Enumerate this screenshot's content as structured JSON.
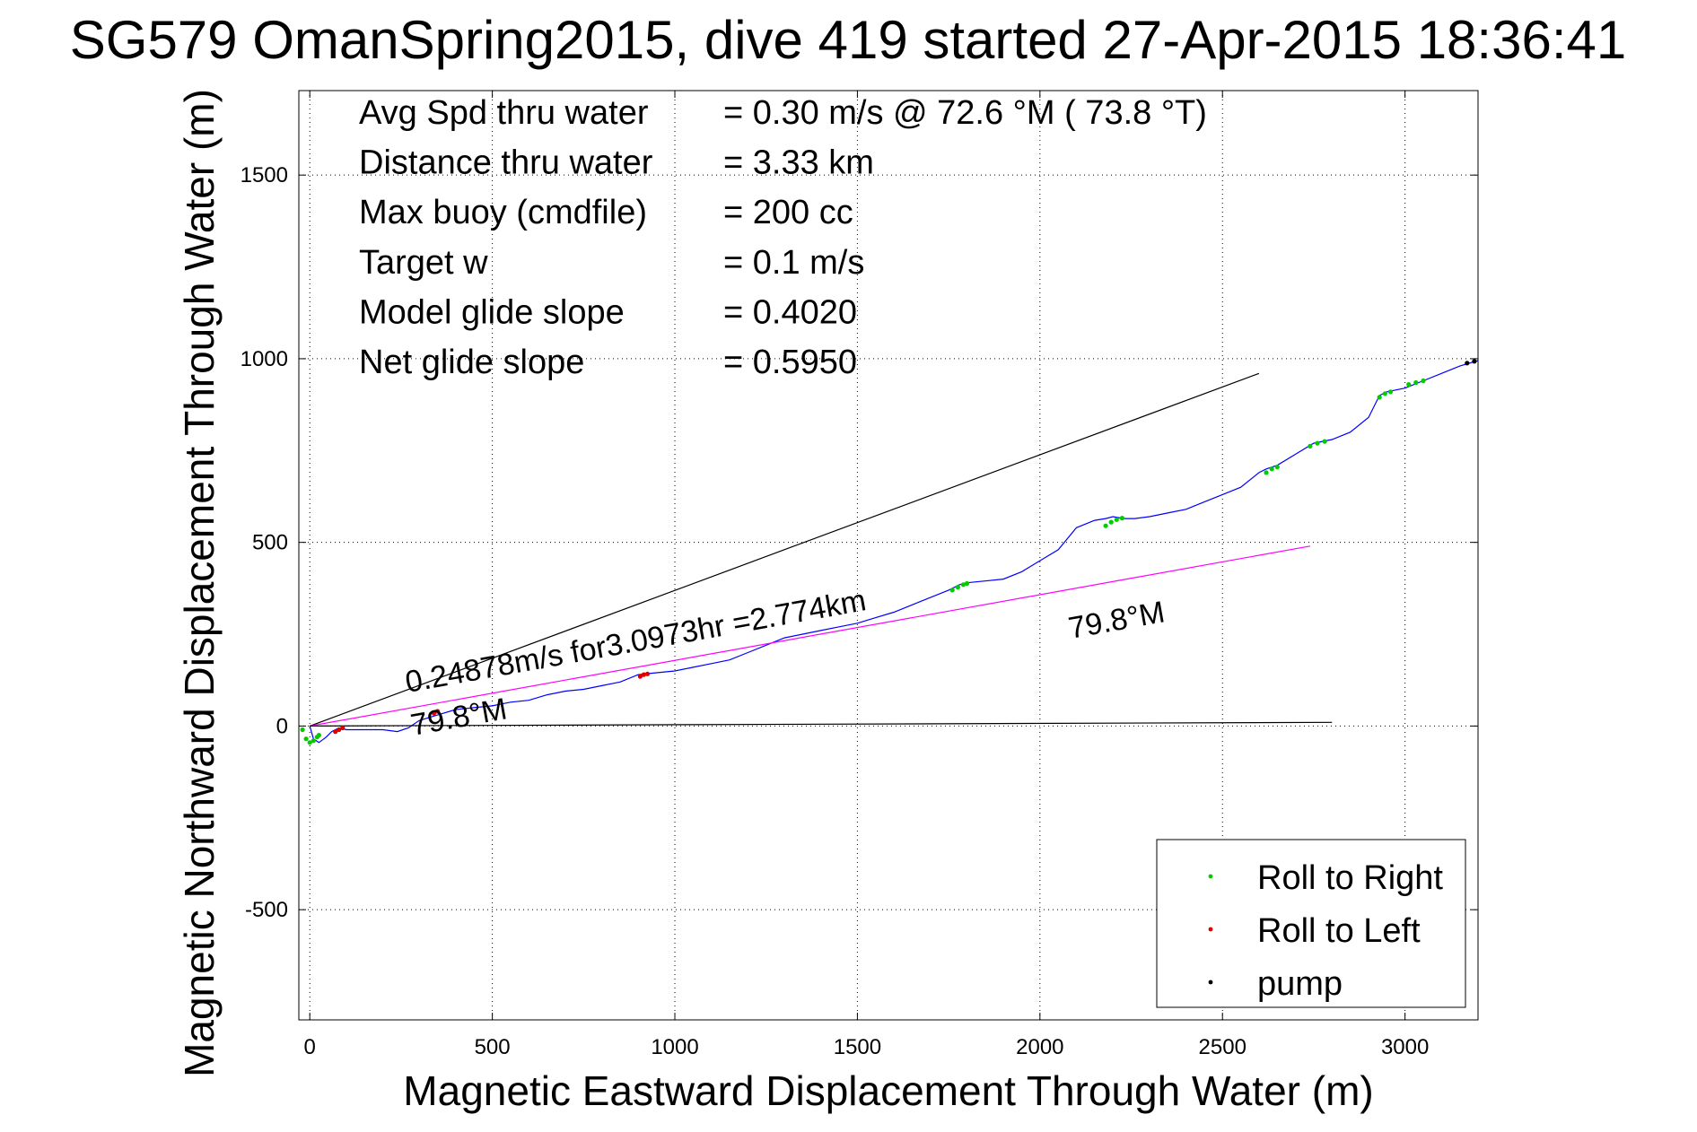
{
  "chart_data": {
    "type": "line",
    "title": "SG579 OmanSpring2015, dive 419 started 27-Apr-2015 18:36:41",
    "xlabel": "Magnetic Eastward Displacement Through Water (m)",
    "ylabel": "Magnetic Northward Displacement Through Water (m)",
    "xlim": [
      -30,
      3200
    ],
    "ylim": [
      -800,
      1730
    ],
    "xticks": [
      0,
      500,
      1000,
      1500,
      2000,
      2500,
      3000
    ],
    "yticks": [
      -500,
      0,
      500,
      1000,
      1500
    ],
    "grid": true,
    "legend_position": "bottom-right",
    "info": [
      {
        "label": "Avg Spd thru water",
        "value": "=  0.30 m/s @  72.6 °M ( 73.8 °T)"
      },
      {
        "label": "Distance thru water",
        "value": "=  3.33 km"
      },
      {
        "label": "Max buoy (cmdfile)",
        "value": "= 200 cc"
      },
      {
        "label": "Target w",
        "value": "= 0.1 m/s"
      },
      {
        "label": "Model glide slope",
        "value": "= 0.4020"
      },
      {
        "label": "Net glide slope",
        "value": "= 0.5950"
      }
    ],
    "annotations": {
      "speed": "0.24878m/s for3.0973hr =2.774km",
      "heading_near": "79.8°M",
      "heading_far": "79.8°M"
    },
    "legend": [
      {
        "label": "Roll to Right",
        "color": "#00cc00"
      },
      {
        "label": "Roll to Left",
        "color": "#dd0000"
      },
      {
        "label": "pump",
        "color": "#000000"
      }
    ],
    "series": [
      {
        "color": "#0000ff",
        "x": [
          0,
          10,
          25,
          45,
          60,
          80,
          100,
          140,
          200,
          240,
          270,
          300,
          350,
          400,
          450,
          500,
          550,
          600,
          650,
          700,
          750,
          800,
          850,
          900,
          950,
          1000,
          1050,
          1100,
          1150,
          1200,
          1250,
          1300,
          1350,
          1400,
          1450,
          1500,
          1550,
          1600,
          1650,
          1700,
          1750,
          1780,
          1800,
          1850,
          1900,
          1950,
          2000,
          2050,
          2100,
          2150,
          2180,
          2200,
          2230,
          2260,
          2300,
          2350,
          2400,
          2450,
          2500,
          2550,
          2600,
          2620,
          2650,
          2700,
          2750,
          2800,
          2850,
          2900,
          2930,
          2950,
          3000,
          3050,
          3100,
          3150,
          3200
        ],
        "y": [
          0,
          -35,
          -45,
          -30,
          -15,
          -5,
          -10,
          -10,
          -10,
          -15,
          -5,
          15,
          30,
          45,
          50,
          55,
          65,
          70,
          85,
          95,
          100,
          110,
          120,
          140,
          145,
          150,
          160,
          170,
          180,
          200,
          220,
          240,
          250,
          260,
          270,
          280,
          295,
          310,
          330,
          350,
          370,
          385,
          390,
          395,
          400,
          420,
          450,
          480,
          540,
          560,
          565,
          570,
          565,
          565,
          570,
          580,
          590,
          610,
          630,
          650,
          690,
          700,
          710,
          740,
          770,
          780,
          800,
          840,
          900,
          910,
          920,
          940,
          960,
          980,
          995
        ]
      },
      {
        "color": "#000000",
        "x": [
          0,
          2600
        ],
        "y": [
          0,
          960
        ]
      },
      {
        "color": "#ff00ff",
        "x": [
          0,
          2740
        ],
        "y": [
          0,
          490
        ]
      },
      {
        "color": "#000000",
        "x": [
          0,
          2800
        ],
        "y": [
          0,
          10
        ]
      }
    ],
    "roll_right_points": [
      {
        "x": [
          -20,
          -10,
          0,
          10,
          20,
          25
        ],
        "y": [
          -10,
          -35,
          -45,
          -40,
          -30,
          -25
        ]
      },
      {
        "x": [
          1760,
          1775,
          1790,
          1800
        ],
        "y": [
          370,
          378,
          385,
          388
        ]
      },
      {
        "x": [
          2180,
          2195,
          2210,
          2225
        ],
        "y": [
          545,
          555,
          562,
          566
        ]
      },
      {
        "x": [
          2620,
          2635,
          2650
        ],
        "y": [
          690,
          700,
          705
        ]
      },
      {
        "x": [
          2740,
          2760,
          2780
        ],
        "y": [
          762,
          770,
          775
        ]
      },
      {
        "x": [
          2930,
          2945,
          2960,
          3010,
          3030,
          3050
        ],
        "y": [
          895,
          905,
          910,
          930,
          935,
          940
        ]
      }
    ],
    "roll_left_points": [
      {
        "x": [
          70,
          80,
          90
        ],
        "y": [
          -15,
          -10,
          -5
        ]
      },
      {
        "x": [
          340,
          350
        ],
        "y": [
          35,
          40
        ]
      },
      {
        "x": [
          905,
          915,
          925
        ],
        "y": [
          135,
          140,
          142
        ]
      }
    ],
    "pump_points": {
      "x": [
        3170,
        3190
      ],
      "y": [
        988,
        993
      ]
    }
  }
}
